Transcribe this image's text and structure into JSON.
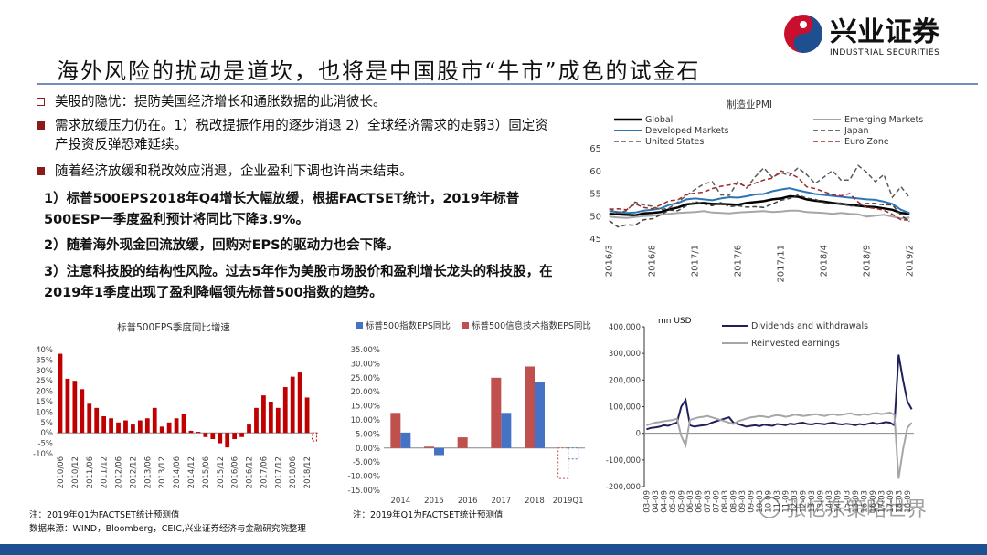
{
  "logo": {
    "name": "兴业证券",
    "english": "INDUSTRIAL SECURITIES"
  },
  "title": "海外风险的扰动是道坎，也将是中国股市“牛市”成色的试金石",
  "bullets": [
    "美股的隐忧：提防美国经济增长和通胀数据的此消彼长。",
    "需求放缓压力仍在。1）税改提振作用的逐步消退 2）全球经济需求的走弱3）固定资产投资反弹恐难延续。",
    "随着经济放缓和税改效应消退，企业盈利下调也许尚未结束。"
  ],
  "paragraphs": [
    "1）标普500EPS2018年Q4增长大幅放缓，根据FACTSET统计，2019年标普500ESP一季度盈利预计将同比下降3.9%。",
    "2）随着海外现金回流放缓，回购对EPS的驱动力也会下降。",
    "3）注意科技股的结构性风险。过去5年作为美股市场股价和盈利增长龙头的科技股，在2019年1季度出现了盈利降幅领先标普500指数的趋势。"
  ],
  "notes": [
    "注：2019年Q1为FACTSET统计预测值",
    "数据来源：WIND，Bloomberg，CEIC,兴业证券经济与金融研究院整理",
    "注：2019年Q1为FACTSET统计预测值"
  ],
  "watermark": "张忆东策略世界",
  "chart_data": [
    {
      "type": "line",
      "title": "制造业PMI",
      "categories": [
        "2016/3",
        null,
        null,
        null,
        null,
        "2016/8",
        null,
        null,
        null,
        null,
        "2017/1",
        null,
        null,
        null,
        null,
        "2017/6",
        null,
        null,
        null,
        null,
        "2017/11",
        null,
        null,
        null,
        null,
        "2018/4",
        null,
        null,
        null,
        null,
        "2018/9",
        null,
        null,
        null,
        null,
        "2019/2"
      ],
      "series": [
        {
          "name": "Global",
          "color": "#000000",
          "linewidth": 2.5,
          "dash": false,
          "values": [
            50.6,
            50.5,
            50.4,
            50.3,
            50.7,
            50.8,
            51.0,
            51.6,
            52.0,
            52.7,
            52.9,
            53.0,
            52.8,
            52.8,
            52.7,
            52.6,
            53.0,
            53.2,
            53.4,
            53.8,
            54.0,
            54.5,
            54.4,
            53.8,
            53.5,
            53.3,
            53.0,
            52.8,
            52.6,
            52.4,
            52.2,
            52.1,
            51.8,
            51.5,
            50.8,
            50.6
          ]
        },
        {
          "name": "Emerging Markets",
          "color": "#a6a6a6",
          "linewidth": 2,
          "dash": false,
          "values": [
            50.0,
            49.8,
            49.7,
            49.9,
            50.1,
            50.2,
            50.4,
            50.6,
            50.8,
            50.9,
            51.0,
            51.2,
            50.9,
            50.8,
            50.7,
            50.9,
            51.0,
            51.1,
            51.2,
            51.0,
            51.1,
            51.3,
            51.3,
            51.0,
            50.9,
            50.8,
            50.6,
            50.8,
            50.6,
            50.5,
            50.0,
            50.2,
            50.4,
            50.0,
            49.6,
            49.8
          ]
        },
        {
          "name": "Developed Markets",
          "color": "#2e75b6",
          "linewidth": 2,
          "dash": false,
          "values": [
            51.2,
            51.0,
            50.8,
            50.9,
            51.3,
            51.5,
            51.8,
            52.6,
            53.0,
            53.8,
            54.0,
            53.8,
            53.6,
            54.0,
            54.3,
            54.2,
            54.5,
            54.9,
            55.0,
            55.6,
            56.0,
            56.3,
            55.8,
            55.4,
            55.0,
            54.8,
            54.6,
            54.4,
            54.2,
            54.0,
            53.8,
            53.7,
            53.3,
            52.8,
            51.5,
            50.8
          ]
        },
        {
          "name": "Japan",
          "color": "#404040",
          "linewidth": 1.5,
          "dash": true,
          "values": [
            49.1,
            47.7,
            48.2,
            48.1,
            49.3,
            49.5,
            50.4,
            51.4,
            51.3,
            52.4,
            53.3,
            52.8,
            52.4,
            53.1,
            52.2,
            52.4,
            52.1,
            52.2,
            52.0,
            52.8,
            53.6,
            54.0,
            54.8,
            54.1,
            53.8,
            53.1,
            52.8,
            53.0,
            52.3,
            52.5,
            52.9,
            52.9,
            52.6,
            52.6,
            50.3,
            48.9
          ]
        },
        {
          "name": "United States",
          "color": "#595959",
          "linewidth": 1.5,
          "dash": true,
          "values": [
            51.8,
            50.8,
            51.3,
            53.2,
            52.6,
            52.3,
            51.5,
            51.9,
            53.2,
            54.7,
            56.0,
            57.2,
            57.7,
            54.8,
            54.7,
            57.8,
            56.3,
            58.8,
            60.8,
            58.7,
            59.7,
            59.1,
            60.8,
            59.3,
            57.3,
            58.7,
            60.2,
            58.1,
            58.1,
            61.3,
            59.8,
            57.7,
            59.3,
            54.3,
            56.6,
            54.2
          ]
        },
        {
          "name": "Euro Zone",
          "color": "#9e2a2b",
          "linewidth": 1.5,
          "dash": true,
          "values": [
            51.6,
            51.7,
            51.5,
            52.8,
            52.0,
            51.7,
            52.6,
            53.5,
            53.7,
            54.9,
            55.2,
            55.4,
            56.2,
            56.7,
            57.0,
            57.4,
            56.6,
            57.4,
            58.1,
            58.5,
            60.1,
            59.6,
            58.6,
            56.6,
            56.2,
            55.5,
            54.9,
            54.6,
            55.1,
            53.2,
            52.0,
            51.8,
            51.4,
            50.5,
            49.3,
            49.2
          ]
        }
      ],
      "ylim": [
        45,
        65
      ],
      "yticks": [
        45,
        50,
        55,
        60,
        65
      ],
      "grid": false
    },
    {
      "type": "bar",
      "title": "标普500EPS季度同比增速",
      "categories": [
        "2010/06",
        null,
        "2010/12",
        null,
        "2011/06",
        null,
        "2011/12",
        null,
        "2012/06",
        null,
        "2012/12",
        null,
        "2013/06",
        null,
        "2013/12",
        null,
        "2014/06",
        null,
        "2014/12",
        null,
        "2015/06",
        null,
        "2015/12",
        null,
        "2016/06",
        null,
        "2016/12",
        null,
        "2017/06",
        null,
        "2017/12",
        null,
        "2018/06",
        null,
        "2018/12",
        null
      ],
      "values": [
        38,
        26,
        25,
        21,
        14,
        12,
        8,
        7,
        5,
        6,
        4,
        6,
        7,
        12,
        3,
        5,
        7,
        9,
        1,
        0.5,
        -2,
        -3,
        -5,
        -7,
        -3,
        -2,
        4,
        12,
        18,
        15,
        12,
        22,
        27,
        29,
        17,
        -3.9
      ],
      "color": "#c00000",
      "ylim": [
        -10,
        40
      ],
      "yticks": [
        {
          "value": -10,
          "label": "-10%"
        },
        {
          "value": -5,
          "label": "-5%"
        },
        {
          "value": 0,
          "label": "0%"
        },
        {
          "value": 5,
          "label": "5%"
        },
        {
          "value": 10,
          "label": "10%"
        },
        {
          "value": 15,
          "label": "15%"
        },
        {
          "value": 20,
          "label": "20%"
        },
        {
          "value": 25,
          "label": "25%"
        },
        {
          "value": 30,
          "label": "30%"
        },
        {
          "value": 35,
          "label": "35%"
        },
        {
          "value": 40,
          "label": "40%"
        }
      ],
      "grid": false
    },
    {
      "type": "bar",
      "categories": [
        "2014",
        "2015",
        "2016",
        "2017",
        "2018",
        "2019Q1"
      ],
      "series": [
        {
          "name": "标普500指数EPS同比",
          "color": "#4472c4",
          "values": [
            5.5,
            -2.5,
            null,
            12.5,
            23.5,
            -3.9
          ]
        },
        {
          "name": "标普500信息技术指数EPS同比",
          "color": "#c0504d",
          "values": [
            12.5,
            0.5,
            3.8,
            25,
            29,
            -10.8
          ]
        }
      ],
      "ylim": [
        -15,
        35
      ],
      "yticks": [
        {
          "value": -15,
          "label": "-15.00%"
        },
        {
          "value": -10,
          "label": "-10.00%"
        },
        {
          "value": -5,
          "label": "-5.00%"
        },
        {
          "value": 0,
          "label": "0.00%"
        },
        {
          "value": 5,
          "label": "5.00%"
        },
        {
          "value": 10,
          "label": "10.00%"
        },
        {
          "value": 15,
          "label": "15.00%"
        },
        {
          "value": 20,
          "label": "20.00%"
        },
        {
          "value": 25,
          "label": "25.00%"
        },
        {
          "value": 30,
          "label": "30.00%"
        },
        {
          "value": 35,
          "label": "35.00%"
        }
      ],
      "grid": false
    },
    {
      "type": "line",
      "y_label": "mn USD",
      "categories": [
        "03-09",
        null,
        "04-03",
        null,
        "04-09",
        null,
        "05-03",
        null,
        "05-09",
        null,
        "06-03",
        null,
        "06-09",
        null,
        "07-03",
        null,
        "07-09",
        null,
        "08-03",
        null,
        "08-09",
        null,
        "09-03",
        null,
        "09-09",
        null,
        "10-03",
        null,
        "10-09",
        null,
        "11-03",
        null,
        "11-09",
        null,
        "12-03",
        null,
        "12-09",
        null,
        "13-03",
        null,
        "13-09",
        null,
        "14-03",
        null,
        "14-09",
        null,
        "15-03",
        null,
        "15-09",
        null,
        "16-03",
        null,
        "16-09",
        null,
        "17-03",
        null,
        "17-09",
        null,
        "18-03",
        null,
        "18-09",
        null
      ],
      "series": [
        {
          "name": "Dividends and withdrawals",
          "color": "#1f1f5c",
          "linewidth": 2,
          "dash": false,
          "values": [
            15000,
            20000,
            22000,
            25000,
            30000,
            28000,
            35000,
            40000,
            100000,
            125000,
            30000,
            25000,
            28000,
            30000,
            32000,
            40000,
            45000,
            50000,
            55000,
            60000,
            40000,
            35000,
            30000,
            25000,
            28000,
            30000,
            27000,
            32000,
            30000,
            28000,
            35000,
            33000,
            30000,
            36000,
            34000,
            38000,
            40000,
            35000,
            33000,
            37000,
            36000,
            34000,
            38000,
            40000,
            35000,
            33000,
            36000,
            34000,
            30000,
            35000,
            32000,
            36000,
            40000,
            35000,
            38000,
            42000,
            40000,
            30000,
            295000,
            200000,
            120000,
            90000
          ]
        },
        {
          "name": "Reinvested earnings",
          "color": "#a6a6a6",
          "linewidth": 2,
          "dash": false,
          "values": [
            30000,
            35000,
            40000,
            42000,
            45000,
            48000,
            50000,
            55000,
            -10000,
            -45000,
            50000,
            55000,
            60000,
            62000,
            65000,
            60000,
            55000,
            50000,
            45000,
            40000,
            35000,
            45000,
            50000,
            55000,
            60000,
            62000,
            65000,
            63000,
            60000,
            65000,
            68000,
            66000,
            62000,
            65000,
            70000,
            68000,
            65000,
            67000,
            70000,
            72000,
            68000,
            65000,
            70000,
            72000,
            68000,
            70000,
            73000,
            75000,
            70000,
            68000,
            72000,
            70000,
            74000,
            76000,
            72000,
            75000,
            78000,
            70000,
            -170000,
            -60000,
            20000,
            40000
          ]
        }
      ],
      "ylim": [
        -200000,
        400000
      ],
      "yticks": [
        {
          "value": -200000,
          "label": "-200,000"
        },
        {
          "value": -100000,
          "label": "-100,000"
        },
        0,
        {
          "value": 100000,
          "label": "100,000"
        },
        {
          "value": 200000,
          "label": "200,000"
        },
        {
          "value": 300000,
          "label": "300,000"
        },
        {
          "value": 400000,
          "label": "400,000"
        }
      ],
      "grid": false
    }
  ]
}
